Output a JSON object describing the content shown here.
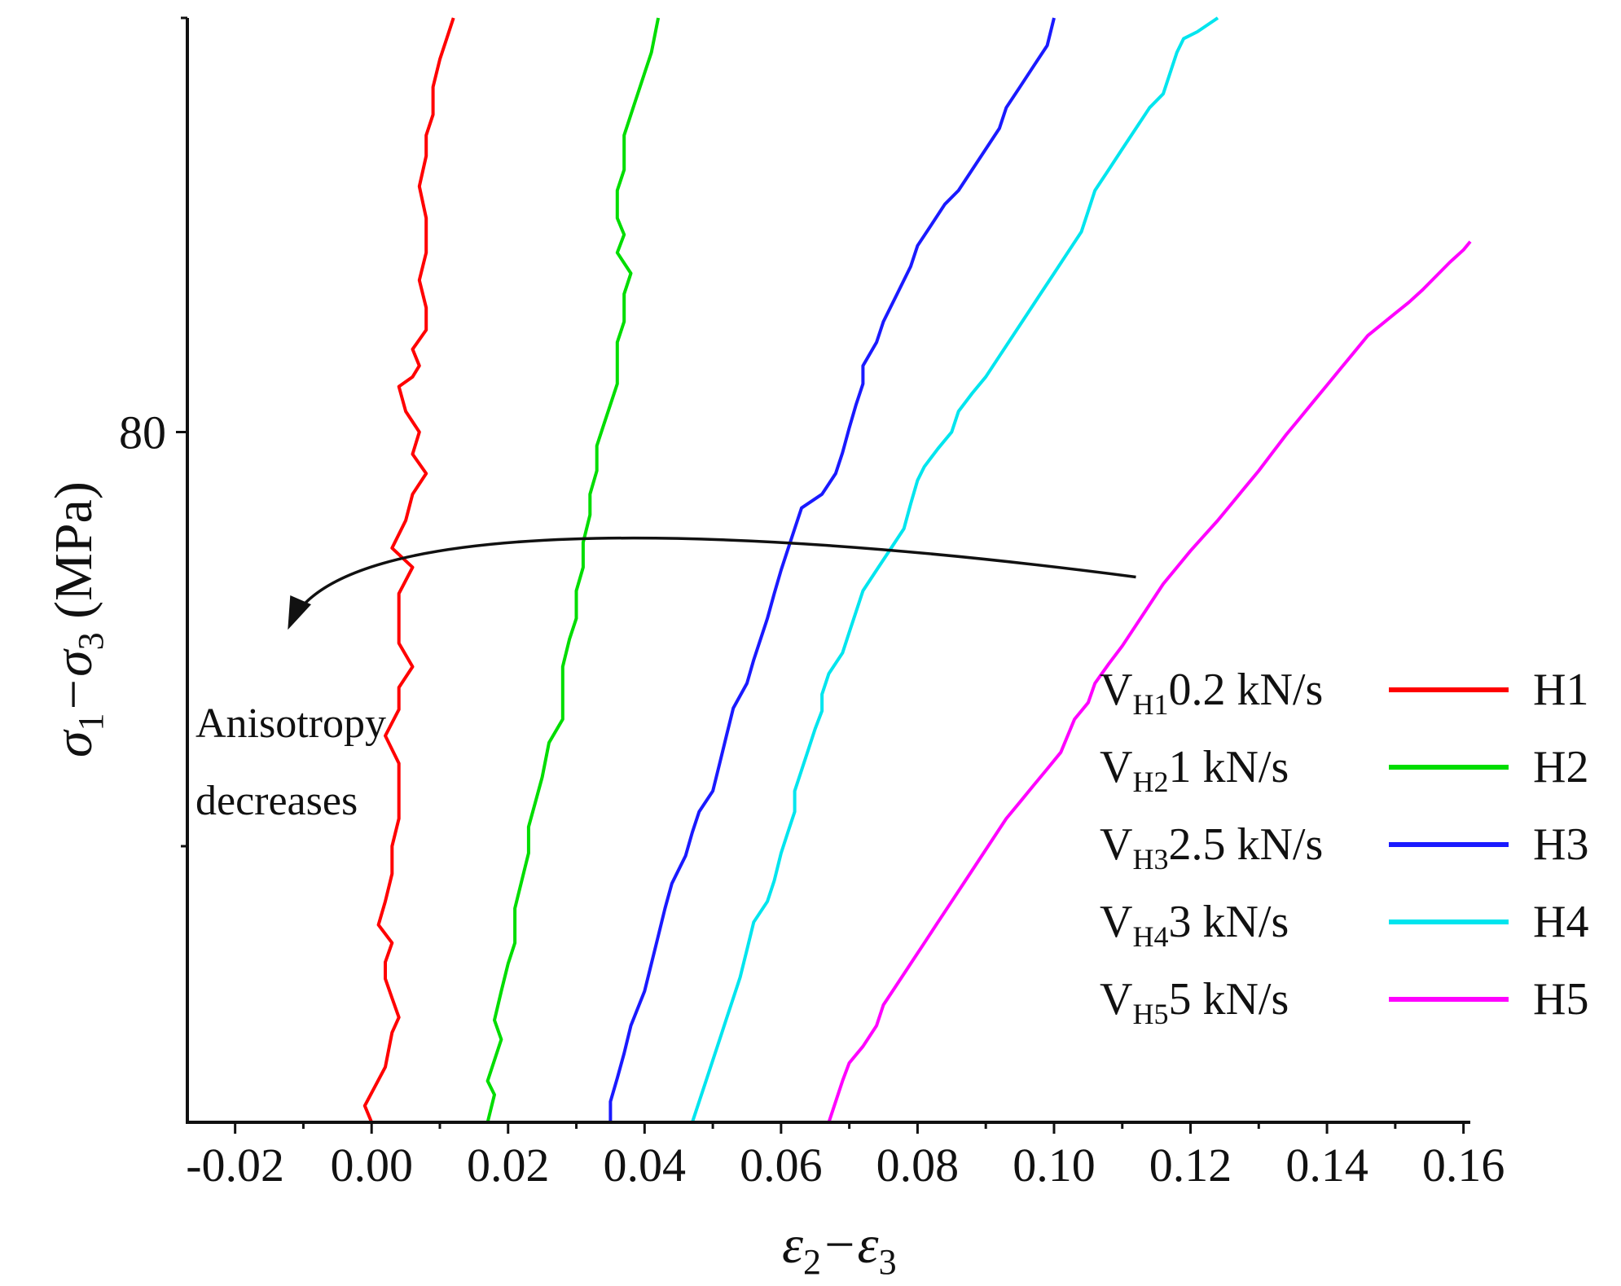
{
  "chart_data": {
    "type": "line",
    "title": "",
    "xlabel": "ε2−ε3",
    "ylabel": "σ1−σ3 (MPa)",
    "xlim": [
      -0.027,
      0.161
    ],
    "ylim": [
      30,
      110
    ],
    "x_ticks": [
      -0.02,
      0.0,
      0.02,
      0.04,
      0.06,
      0.08,
      0.1,
      0.12,
      0.14,
      0.16
    ],
    "x_tick_labels": [
      "-0.02",
      "0.00",
      "0.02",
      "0.04",
      "0.06",
      "0.08",
      "0.10",
      "0.12",
      "0.14",
      "0.16"
    ],
    "y_ticks": [
      80
    ],
    "y_tick_labels": [
      "80"
    ],
    "grid": false,
    "legend_position": "right",
    "series": [
      {
        "name": "H1",
        "label": "V",
        "sub": "H1",
        "rate": "0.2 kN/s",
        "color": "#ff0000",
        "points": [
          [
            0.0,
            30.0
          ],
          [
            -0.001,
            31.2
          ],
          [
            0.002,
            34.0
          ],
          [
            0.003,
            36.5
          ],
          [
            0.004,
            37.6
          ],
          [
            0.003,
            39.0
          ],
          [
            0.002,
            40.4
          ],
          [
            0.002,
            41.6
          ],
          [
            0.003,
            43.0
          ],
          [
            0.001,
            44.3
          ],
          [
            0.002,
            46.0
          ],
          [
            0.003,
            48.0
          ],
          [
            0.003,
            50.0
          ],
          [
            0.004,
            52.0
          ],
          [
            0.004,
            54.0
          ],
          [
            0.004,
            56.0
          ],
          [
            0.002,
            58.0
          ],
          [
            0.004,
            59.9
          ],
          [
            0.004,
            61.5
          ],
          [
            0.006,
            63.0
          ],
          [
            0.004,
            64.7
          ],
          [
            0.004,
            66.5
          ],
          [
            0.004,
            68.3
          ],
          [
            0.006,
            70.2
          ],
          [
            0.003,
            71.6
          ],
          [
            0.005,
            73.6
          ],
          [
            0.006,
            75.5
          ],
          [
            0.008,
            77.0
          ],
          [
            0.006,
            78.4
          ],
          [
            0.007,
            80.0
          ],
          [
            0.005,
            81.5
          ],
          [
            0.004,
            83.3
          ],
          [
            0.006,
            84.0
          ],
          [
            0.007,
            84.8
          ],
          [
            0.006,
            86.0
          ],
          [
            0.008,
            87.4
          ],
          [
            0.008,
            89.0
          ],
          [
            0.007,
            91.0
          ],
          [
            0.008,
            93.0
          ],
          [
            0.008,
            95.5
          ],
          [
            0.007,
            97.8
          ],
          [
            0.008,
            100.0
          ],
          [
            0.008,
            101.5
          ],
          [
            0.009,
            103.0
          ],
          [
            0.009,
            105.0
          ],
          [
            0.01,
            107.0
          ],
          [
            0.011,
            108.5
          ],
          [
            0.012,
            110.0
          ]
        ]
      },
      {
        "name": "H2",
        "label": "V",
        "sub": "H2",
        "rate": "1 kN/s",
        "color": "#00dd00",
        "points": [
          [
            0.017,
            30.0
          ],
          [
            0.018,
            32.0
          ],
          [
            0.017,
            33.0
          ],
          [
            0.018,
            34.5
          ],
          [
            0.019,
            36.0
          ],
          [
            0.018,
            37.4
          ],
          [
            0.019,
            39.5
          ],
          [
            0.02,
            41.5
          ],
          [
            0.021,
            43.0
          ],
          [
            0.021,
            45.5
          ],
          [
            0.022,
            47.5
          ],
          [
            0.023,
            49.5
          ],
          [
            0.023,
            51.4
          ],
          [
            0.024,
            53.2
          ],
          [
            0.025,
            55.0
          ],
          [
            0.026,
            57.5
          ],
          [
            0.028,
            59.2
          ],
          [
            0.028,
            61.2
          ],
          [
            0.028,
            63.0
          ],
          [
            0.029,
            65.0
          ],
          [
            0.03,
            66.5
          ],
          [
            0.03,
            68.5
          ],
          [
            0.031,
            70.2
          ],
          [
            0.031,
            72.0
          ],
          [
            0.032,
            74.0
          ],
          [
            0.032,
            75.5
          ],
          [
            0.033,
            77.2
          ],
          [
            0.033,
            79.0
          ],
          [
            0.034,
            80.5
          ],
          [
            0.035,
            82.0
          ],
          [
            0.036,
            83.5
          ],
          [
            0.036,
            85.0
          ],
          [
            0.036,
            86.5
          ],
          [
            0.037,
            88.0
          ],
          [
            0.037,
            90.0
          ],
          [
            0.038,
            91.5
          ],
          [
            0.036,
            93.0
          ],
          [
            0.037,
            94.3
          ],
          [
            0.036,
            95.5
          ],
          [
            0.036,
            97.5
          ],
          [
            0.037,
            99.0
          ],
          [
            0.037,
            100.0
          ],
          [
            0.037,
            101.5
          ],
          [
            0.038,
            103.0
          ],
          [
            0.039,
            104.5
          ],
          [
            0.04,
            106.0
          ],
          [
            0.041,
            107.5
          ],
          [
            0.042,
            110.0
          ]
        ]
      },
      {
        "name": "H3",
        "label": "V",
        "sub": "H3",
        "rate": "2.5 kN/s",
        "color": "#1a1aff",
        "points": [
          [
            0.035,
            30.0
          ],
          [
            0.035,
            31.5
          ],
          [
            0.036,
            33.2
          ],
          [
            0.037,
            35.0
          ],
          [
            0.038,
            37.0
          ],
          [
            0.04,
            39.5
          ],
          [
            0.041,
            41.5
          ],
          [
            0.042,
            43.5
          ],
          [
            0.043,
            45.5
          ],
          [
            0.044,
            47.3
          ],
          [
            0.046,
            49.3
          ],
          [
            0.047,
            51.0
          ],
          [
            0.048,
            52.5
          ],
          [
            0.05,
            54.0
          ],
          [
            0.051,
            56.0
          ],
          [
            0.052,
            58.0
          ],
          [
            0.053,
            60.0
          ],
          [
            0.055,
            61.8
          ],
          [
            0.056,
            63.5
          ],
          [
            0.057,
            65.0
          ],
          [
            0.058,
            66.5
          ],
          [
            0.059,
            68.3
          ],
          [
            0.06,
            70.0
          ],
          [
            0.061,
            71.5
          ],
          [
            0.062,
            73.0
          ],
          [
            0.063,
            74.5
          ],
          [
            0.066,
            75.5
          ],
          [
            0.068,
            77.0
          ],
          [
            0.069,
            78.5
          ],
          [
            0.07,
            80.3
          ],
          [
            0.071,
            82.0
          ],
          [
            0.072,
            83.5
          ],
          [
            0.072,
            84.8
          ],
          [
            0.074,
            86.5
          ],
          [
            0.075,
            88.0
          ],
          [
            0.077,
            90.0
          ],
          [
            0.079,
            92.0
          ],
          [
            0.08,
            93.5
          ],
          [
            0.082,
            95.0
          ],
          [
            0.084,
            96.5
          ],
          [
            0.086,
            97.5
          ],
          [
            0.088,
            99.0
          ],
          [
            0.09,
            100.5
          ],
          [
            0.092,
            102.0
          ],
          [
            0.093,
            103.5
          ],
          [
            0.095,
            105.0
          ],
          [
            0.097,
            106.5
          ],
          [
            0.099,
            108.0
          ],
          [
            0.1,
            110.0
          ]
        ]
      },
      {
        "name": "H4",
        "label": "V",
        "sub": "H4",
        "rate": "3 kN/s",
        "color": "#00e5ee",
        "points": [
          [
            0.047,
            30.0
          ],
          [
            0.048,
            31.5
          ],
          [
            0.049,
            33.0
          ],
          [
            0.05,
            34.5
          ],
          [
            0.051,
            36.0
          ],
          [
            0.052,
            37.5
          ],
          [
            0.053,
            39.0
          ],
          [
            0.054,
            40.5
          ],
          [
            0.055,
            42.5
          ],
          [
            0.056,
            44.5
          ],
          [
            0.058,
            46.0
          ],
          [
            0.059,
            47.5
          ],
          [
            0.06,
            49.5
          ],
          [
            0.061,
            51.0
          ],
          [
            0.062,
            52.5
          ],
          [
            0.062,
            54.0
          ],
          [
            0.063,
            55.5
          ],
          [
            0.064,
            57.0
          ],
          [
            0.065,
            58.5
          ],
          [
            0.066,
            59.8
          ],
          [
            0.066,
            61.0
          ],
          [
            0.067,
            62.5
          ],
          [
            0.069,
            64.0
          ],
          [
            0.07,
            65.5
          ],
          [
            0.071,
            67.0
          ],
          [
            0.072,
            68.5
          ],
          [
            0.074,
            70.0
          ],
          [
            0.076,
            71.5
          ],
          [
            0.078,
            73.0
          ],
          [
            0.079,
            74.8
          ],
          [
            0.08,
            76.5
          ],
          [
            0.081,
            77.5
          ],
          [
            0.083,
            78.8
          ],
          [
            0.085,
            80.0
          ],
          [
            0.086,
            81.5
          ],
          [
            0.088,
            82.8
          ],
          [
            0.09,
            84.0
          ],
          [
            0.092,
            85.5
          ],
          [
            0.094,
            87.0
          ],
          [
            0.096,
            88.5
          ],
          [
            0.098,
            90.0
          ],
          [
            0.1,
            91.5
          ],
          [
            0.102,
            93.0
          ],
          [
            0.104,
            94.5
          ],
          [
            0.105,
            96.0
          ],
          [
            0.106,
            97.5
          ],
          [
            0.108,
            99.0
          ],
          [
            0.11,
            100.5
          ],
          [
            0.112,
            102.0
          ],
          [
            0.114,
            103.5
          ],
          [
            0.116,
            104.5
          ],
          [
            0.117,
            106.0
          ],
          [
            0.118,
            107.5
          ],
          [
            0.119,
            108.5
          ],
          [
            0.121,
            109.0
          ],
          [
            0.124,
            110.0
          ]
        ]
      },
      {
        "name": "H5",
        "label": "V",
        "sub": "H5",
        "rate": "5 kN/s",
        "color": "#ff00ff",
        "points": [
          [
            0.067,
            30.0
          ],
          [
            0.068,
            31.5
          ],
          [
            0.069,
            33.0
          ],
          [
            0.07,
            34.3
          ],
          [
            0.072,
            35.5
          ],
          [
            0.074,
            37.0
          ],
          [
            0.075,
            38.5
          ],
          [
            0.077,
            40.0
          ],
          [
            0.079,
            41.5
          ],
          [
            0.081,
            43.0
          ],
          [
            0.083,
            44.5
          ],
          [
            0.085,
            46.0
          ],
          [
            0.087,
            47.5
          ],
          [
            0.089,
            49.0
          ],
          [
            0.091,
            50.5
          ],
          [
            0.093,
            52.0
          ],
          [
            0.095,
            53.2
          ],
          [
            0.097,
            54.4
          ],
          [
            0.099,
            55.6
          ],
          [
            0.101,
            56.8
          ],
          [
            0.102,
            58.0
          ],
          [
            0.103,
            59.2
          ],
          [
            0.105,
            60.4
          ],
          [
            0.106,
            61.8
          ],
          [
            0.108,
            63.2
          ],
          [
            0.11,
            64.5
          ],
          [
            0.112,
            66.0
          ],
          [
            0.114,
            67.5
          ],
          [
            0.116,
            69.0
          ],
          [
            0.118,
            70.2
          ],
          [
            0.12,
            71.4
          ],
          [
            0.122,
            72.5
          ],
          [
            0.124,
            73.6
          ],
          [
            0.126,
            74.8
          ],
          [
            0.128,
            76.0
          ],
          [
            0.13,
            77.2
          ],
          [
            0.132,
            78.5
          ],
          [
            0.134,
            79.8
          ],
          [
            0.136,
            81.0
          ],
          [
            0.138,
            82.2
          ],
          [
            0.14,
            83.4
          ],
          [
            0.142,
            84.6
          ],
          [
            0.144,
            85.8
          ],
          [
            0.146,
            87.0
          ],
          [
            0.148,
            87.8
          ],
          [
            0.15,
            88.6
          ],
          [
            0.152,
            89.4
          ],
          [
            0.154,
            90.3
          ],
          [
            0.156,
            91.3
          ],
          [
            0.158,
            92.3
          ],
          [
            0.16,
            93.2
          ],
          [
            0.161,
            93.8
          ]
        ]
      }
    ],
    "annotations": [
      {
        "text_lines": [
          "Anisotropy",
          "decreases"
        ],
        "arrow_from": [
          0.112,
          69.5
        ],
        "arrow_control": [
          0.05,
          73.5
        ],
        "arrow_control2": [
          -0.005,
          74.0
        ],
        "arrow_to": [
          -0.012,
          66.0
        ]
      }
    ]
  }
}
